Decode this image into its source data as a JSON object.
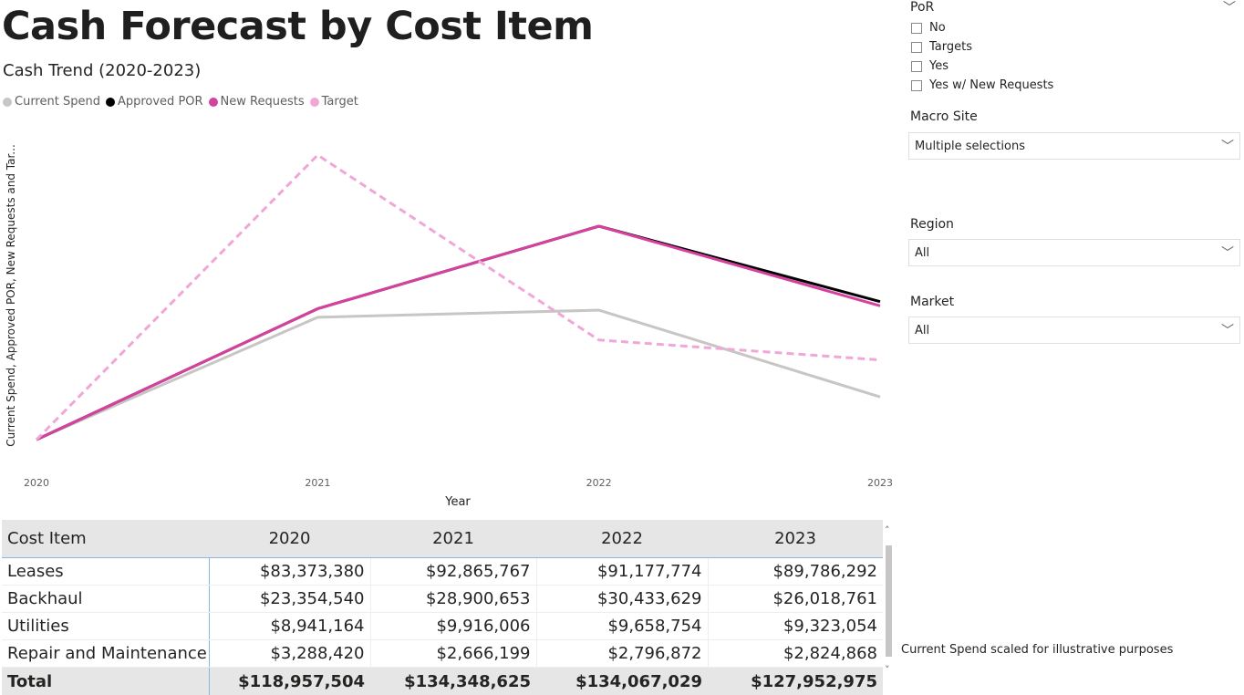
{
  "page_title": "Cash Forecast by Cost Item",
  "chart_title": "Cash Trend (2020-2023)",
  "legend": [
    {
      "label": "Current Spend",
      "color": "#c8c6c4"
    },
    {
      "label": "Approved POR",
      "color": "#000000"
    },
    {
      "label": "New Requests",
      "color": "#d6419f"
    },
    {
      "label": "Target",
      "color": "#f0a7d8"
    }
  ],
  "chart_data": {
    "type": "line",
    "x": [
      "2020",
      "2021",
      "2022",
      "2023"
    ],
    "xlabel": "Year",
    "ylabel": "Current Spend, Approved POR, New Requests and Tar...",
    "series": [
      {
        "name": "Current Spend",
        "values": [
          0.0,
          0.43,
          0.455,
          0.15
        ],
        "color": "#c8c6c4",
        "dash": false
      },
      {
        "name": "Approved POR",
        "values": [
          0.0,
          0.46,
          0.75,
          0.485
        ],
        "color": "#000000",
        "dash": false
      },
      {
        "name": "New Requests",
        "values": [
          0.0,
          0.46,
          0.75,
          0.47
        ],
        "color": "#d6419f",
        "dash": false
      },
      {
        "name": "Target",
        "values": [
          0.0,
          1.0,
          0.35,
          0.28
        ],
        "color": "#f0a7d8",
        "dash": true
      }
    ],
    "ylim": [
      0,
      1
    ],
    "grid": false,
    "legend_position": "top-left"
  },
  "table": {
    "headers": [
      "Cost Item",
      "2020",
      "2021",
      "2022",
      "2023"
    ],
    "rows": [
      [
        "Leases",
        "$83,373,380",
        "$92,865,767",
        "$91,177,774",
        "$89,786,292"
      ],
      [
        "Backhaul",
        "$23,354,540",
        "$28,900,653",
        "$30,433,629",
        "$26,018,761"
      ],
      [
        "Utilities",
        "$8,941,164",
        "$9,916,006",
        "$9,658,754",
        "$9,323,054"
      ],
      [
        "Repair and Maintenance",
        "$3,288,420",
        "$2,666,199",
        "$2,796,872",
        "$2,824,868"
      ]
    ],
    "total": [
      "Total",
      "$118,957,504",
      "$134,348,625",
      "$134,067,029",
      "$127,952,975"
    ]
  },
  "slicers": {
    "por": {
      "title": "PoR",
      "options": [
        "No",
        "Targets",
        "Yes",
        "Yes w/ New Requests"
      ]
    },
    "macro_site": {
      "title": "Macro Site",
      "value": "Multiple selections"
    },
    "region": {
      "title": "Region",
      "value": "All"
    },
    "market": {
      "title": "Market",
      "value": "All"
    }
  },
  "note": "Current Spend scaled for illustrative purposes"
}
